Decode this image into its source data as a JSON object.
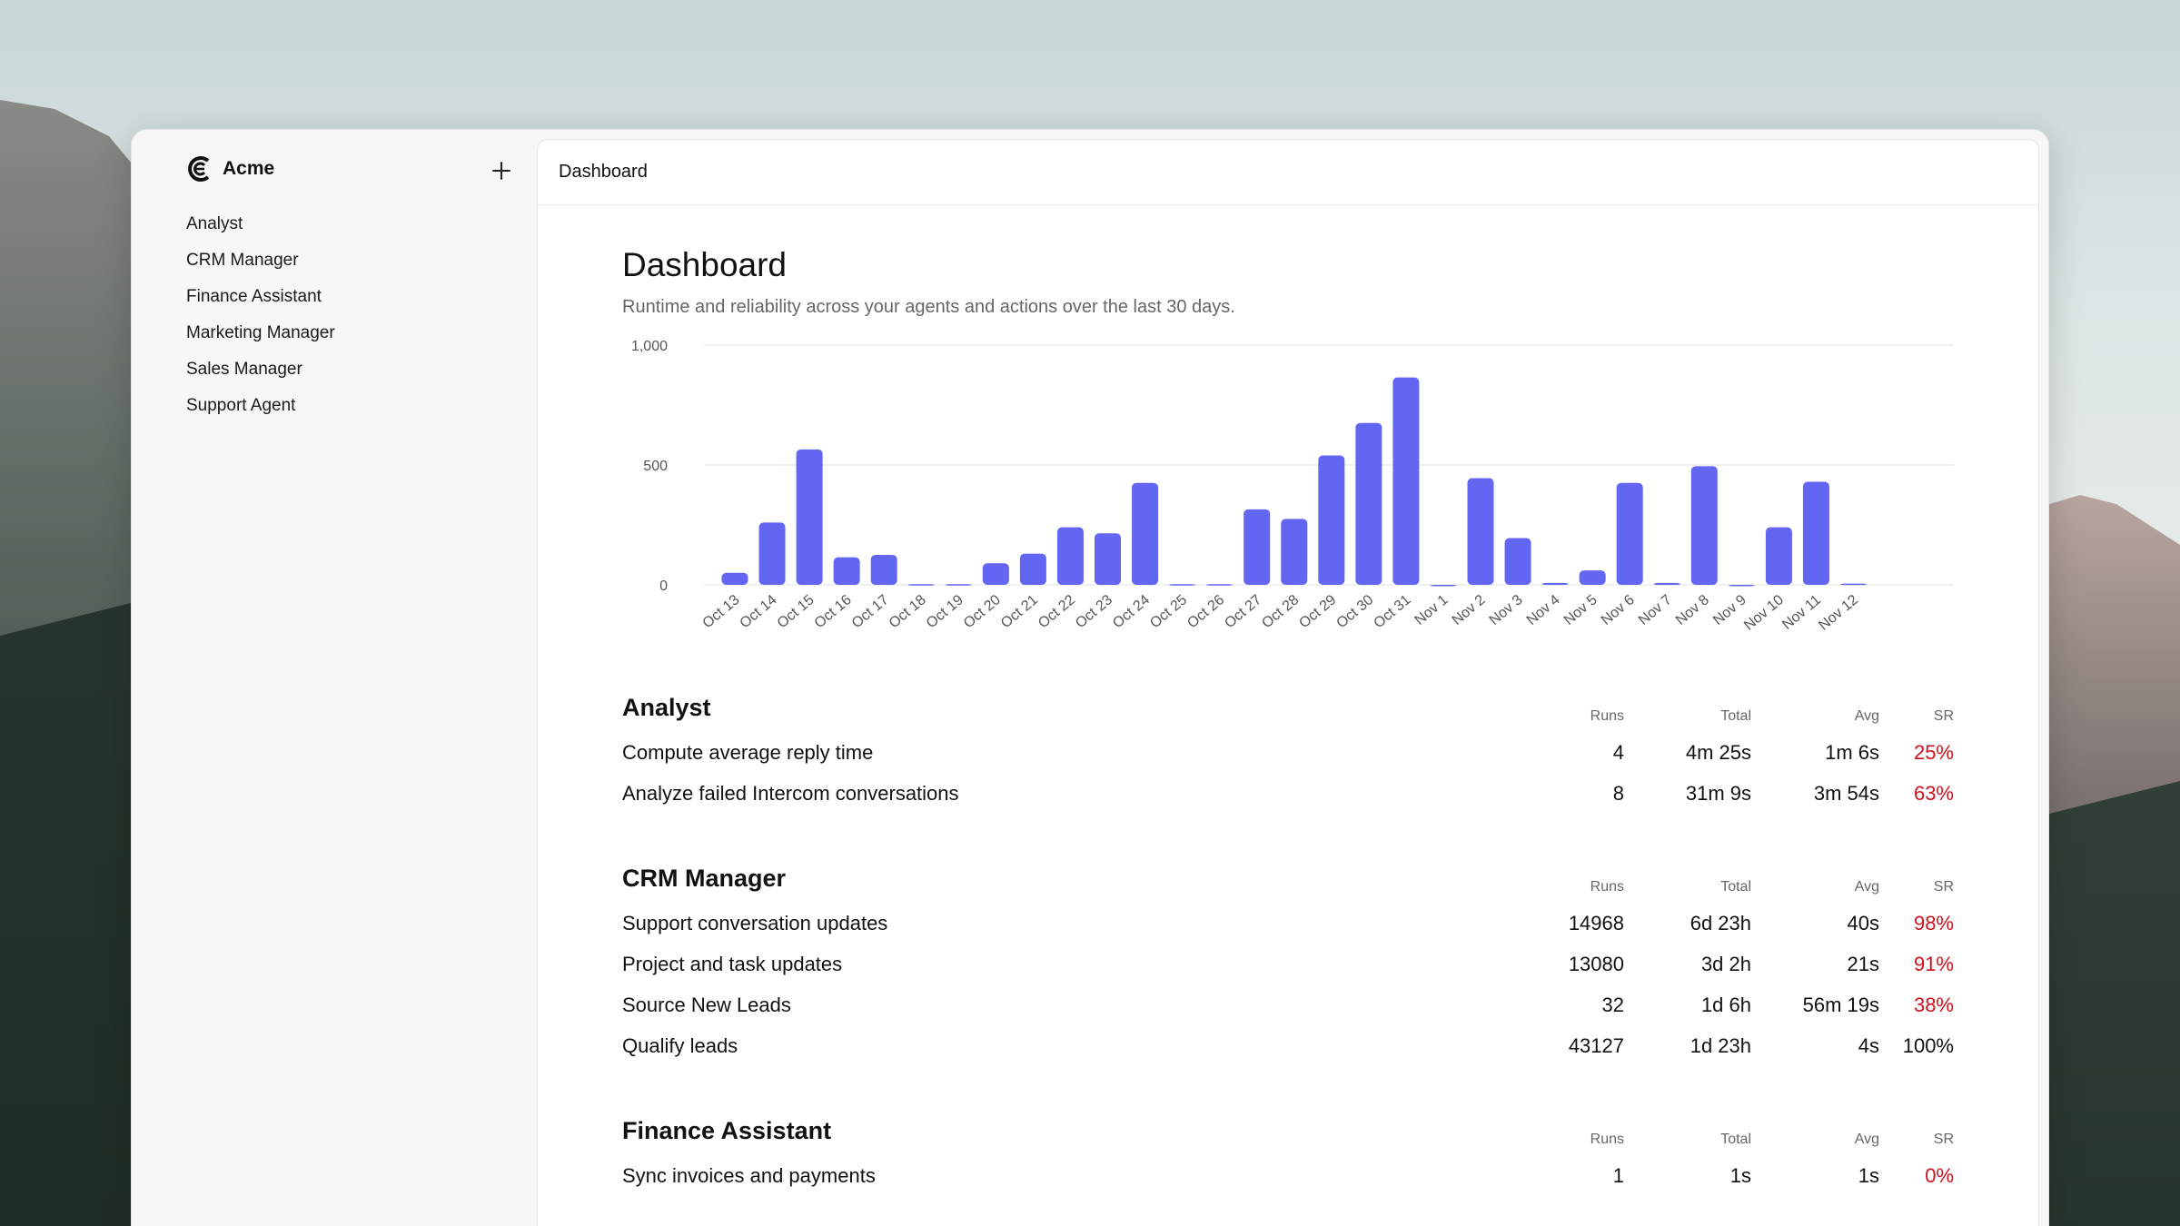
{
  "app": {
    "name": "Acme"
  },
  "sidebar": {
    "items": [
      {
        "label": "Analyst"
      },
      {
        "label": "CRM Manager"
      },
      {
        "label": "Finance Assistant"
      },
      {
        "label": "Marketing Manager"
      },
      {
        "label": "Sales Manager"
      },
      {
        "label": "Support Agent"
      }
    ]
  },
  "header": {
    "title": "Dashboard"
  },
  "page": {
    "title": "Dashboard",
    "subtitle": "Runtime and reliability across your agents and actions over the last 30 days."
  },
  "colors": {
    "bar": "#6366F1",
    "error": "#D0101C",
    "grid": "#E6E6E6"
  },
  "chart_data": {
    "type": "bar",
    "categories": [
      "Oct 13",
      "Oct 14",
      "Oct 15",
      "Oct 16",
      "Oct 17",
      "Oct 18",
      "Oct 19",
      "Oct 20",
      "Oct 21",
      "Oct 22",
      "Oct 23",
      "Oct 24",
      "Oct 25",
      "Oct 26",
      "Oct 27",
      "Oct 28",
      "Oct 29",
      "Oct 30",
      "Oct 31",
      "Nov 1",
      "Nov 2",
      "Nov 3",
      "Nov 4",
      "Nov 5",
      "Nov 6",
      "Nov 7",
      "Nov 8",
      "Nov 9",
      "Nov 10",
      "Nov 11",
      "Nov 12"
    ],
    "values": [
      50,
      260,
      565,
      115,
      125,
      3,
      3,
      90,
      130,
      240,
      215,
      425,
      3,
      3,
      315,
      275,
      540,
      675,
      865,
      0,
      445,
      195,
      8,
      60,
      425,
      8,
      495,
      0,
      240,
      430,
      5
    ],
    "ylim": [
      0,
      1000
    ],
    "yticks": [
      0,
      500,
      1000
    ],
    "ytick_labels": [
      "0",
      "500",
      "1,000"
    ],
    "grid": true
  },
  "columns": {
    "runs": "Runs",
    "total": "Total",
    "avg": "Avg",
    "sr": "SR"
  },
  "sections": [
    {
      "title": "Analyst",
      "rows": [
        {
          "name": "Compute average reply time",
          "runs": "4",
          "total": "4m 25s",
          "avg": "1m 6s",
          "sr": "25%",
          "sr_status": "bad"
        },
        {
          "name": "Analyze failed Intercom conversations",
          "runs": "8",
          "total": "31m 9s",
          "avg": "3m 54s",
          "sr": "63%",
          "sr_status": "bad"
        }
      ]
    },
    {
      "title": "CRM Manager",
      "rows": [
        {
          "name": "Support conversation updates",
          "runs": "14968",
          "total": "6d 23h",
          "avg": "40s",
          "sr": "98%",
          "sr_status": "bad"
        },
        {
          "name": "Project and task updates",
          "runs": "13080",
          "total": "3d 2h",
          "avg": "21s",
          "sr": "91%",
          "sr_status": "bad"
        },
        {
          "name": "Source New Leads",
          "runs": "32",
          "total": "1d 6h",
          "avg": "56m 19s",
          "sr": "38%",
          "sr_status": "bad"
        },
        {
          "name": "Qualify leads",
          "runs": "43127",
          "total": "1d 23h",
          "avg": "4s",
          "sr": "100%",
          "sr_status": "ok"
        }
      ]
    },
    {
      "title": "Finance Assistant",
      "rows": [
        {
          "name": "Sync invoices and payments",
          "runs": "1",
          "total": "1s",
          "avg": "1s",
          "sr": "0%",
          "sr_status": "bad"
        }
      ]
    }
  ]
}
